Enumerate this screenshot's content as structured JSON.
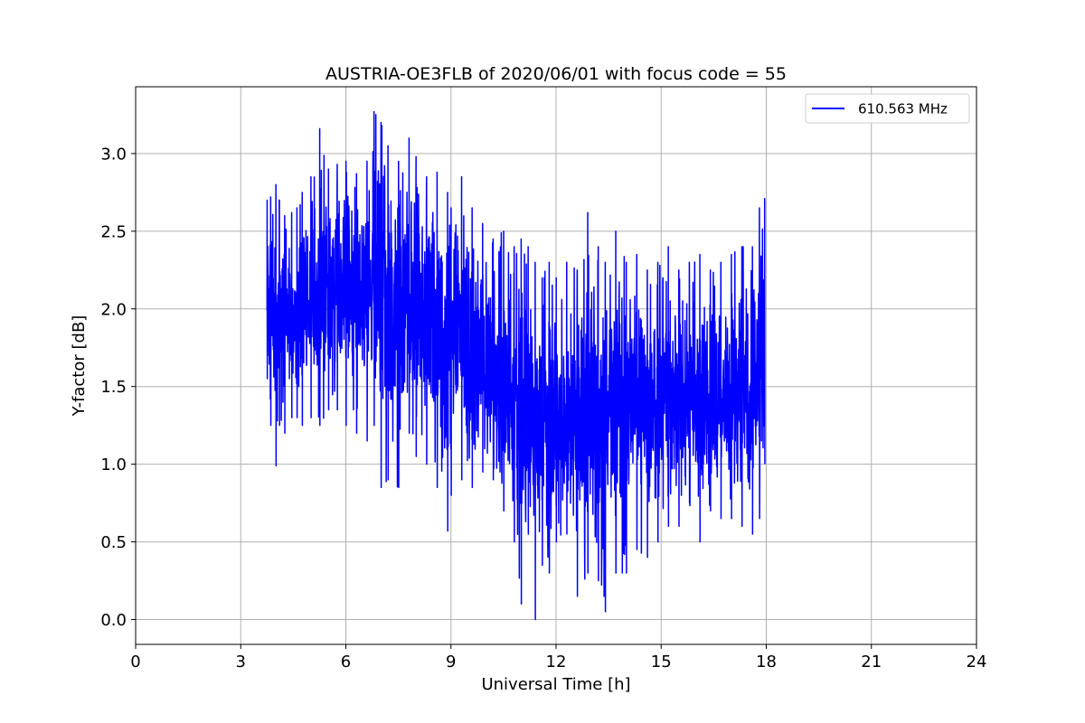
{
  "chart_data": {
    "type": "line",
    "title": "AUSTRIA-OE3FLB of 2020/06/01 with focus code = 55",
    "xlabel": "Universal Time [h]",
    "ylabel": "Y-factor [dB]",
    "xlim": [
      0,
      24
    ],
    "ylim": [
      -0.16,
      3.43
    ],
    "xticks": [
      0,
      3,
      6,
      9,
      12,
      15,
      18,
      21,
      24
    ],
    "xtick_labels": [
      "0",
      "3",
      "6",
      "9",
      "12",
      "15",
      "18",
      "21",
      "24"
    ],
    "yticks": [
      0.0,
      0.5,
      1.0,
      1.5,
      2.0,
      2.5,
      3.0
    ],
    "ytick_labels": [
      "0.0",
      "0.5",
      "1.0",
      "1.5",
      "2.0",
      "2.5",
      "3.0"
    ],
    "grid": true,
    "legend_position": "upper right",
    "series": [
      {
        "name": "610.563 MHz",
        "color": "#0000ff",
        "x": [
          3.75,
          3.85,
          4.0,
          4.1,
          4.25,
          4.45,
          4.6,
          4.75,
          5.0,
          5.25,
          5.5,
          5.75,
          6.0,
          6.3,
          6.6,
          6.8,
          7.0,
          7.2,
          7.5,
          7.8,
          8.0,
          8.3,
          8.6,
          8.9,
          9.0,
          9.3,
          9.6,
          9.9,
          10.2,
          10.5,
          10.8,
          11.0,
          11.2,
          11.4,
          11.6,
          11.8,
          12.0,
          12.3,
          12.6,
          12.9,
          13.2,
          13.4,
          13.7,
          14.0,
          14.3,
          14.6,
          14.9,
          15.2,
          15.5,
          15.8,
          16.1,
          16.4,
          16.7,
          17.0,
          17.3,
          17.6,
          17.8,
          17.95
        ],
        "mean": [
          2.05,
          2.0,
          1.95,
          1.95,
          2.05,
          2.1,
          2.05,
          2.05,
          2.15,
          2.1,
          2.15,
          2.1,
          2.15,
          2.15,
          2.15,
          2.1,
          2.15,
          2.05,
          2.0,
          2.05,
          1.95,
          1.9,
          1.85,
          1.85,
          1.8,
          1.75,
          1.65,
          1.6,
          1.55,
          1.45,
          1.35,
          1.3,
          1.3,
          1.25,
          1.2,
          1.25,
          1.2,
          1.25,
          1.2,
          1.3,
          1.35,
          1.3,
          1.35,
          1.4,
          1.45,
          1.45,
          1.45,
          1.45,
          1.4,
          1.45,
          1.45,
          1.45,
          1.45,
          1.45,
          1.45,
          1.5,
          1.55,
          1.45
        ],
        "min": [
          1.55,
          1.25,
          0.99,
          1.25,
          1.2,
          1.3,
          1.3,
          1.25,
          1.3,
          1.25,
          1.35,
          1.35,
          1.25,
          1.2,
          1.15,
          1.25,
          0.85,
          0.9,
          0.85,
          1.2,
          1.05,
          1.0,
          0.85,
          0.57,
          0.8,
          0.9,
          0.85,
          0.95,
          0.9,
          0.7,
          0.5,
          0.1,
          0.55,
          0.0,
          0.35,
          0.3,
          0.5,
          0.55,
          0.15,
          0.3,
          0.25,
          0.05,
          0.3,
          0.3,
          0.45,
          0.4,
          0.5,
          0.6,
          0.6,
          0.75,
          0.5,
          0.7,
          0.65,
          0.65,
          0.6,
          0.55,
          0.65,
          1.0
        ],
        "max": [
          2.7,
          2.72,
          2.8,
          2.7,
          2.6,
          2.62,
          2.65,
          2.75,
          2.85,
          3.16,
          2.9,
          2.93,
          2.95,
          2.87,
          2.95,
          3.27,
          3.2,
          3.05,
          2.95,
          3.1,
          2.98,
          2.85,
          2.88,
          2.75,
          2.65,
          2.85,
          2.65,
          2.55,
          2.45,
          2.5,
          2.4,
          2.45,
          2.4,
          2.3,
          2.2,
          2.3,
          2.2,
          2.3,
          2.25,
          2.62,
          2.4,
          2.3,
          2.5,
          2.3,
          2.35,
          2.25,
          2.3,
          2.4,
          2.25,
          2.3,
          2.35,
          2.25,
          2.3,
          2.35,
          2.4,
          2.4,
          2.65,
          2.71
        ]
      }
    ]
  }
}
